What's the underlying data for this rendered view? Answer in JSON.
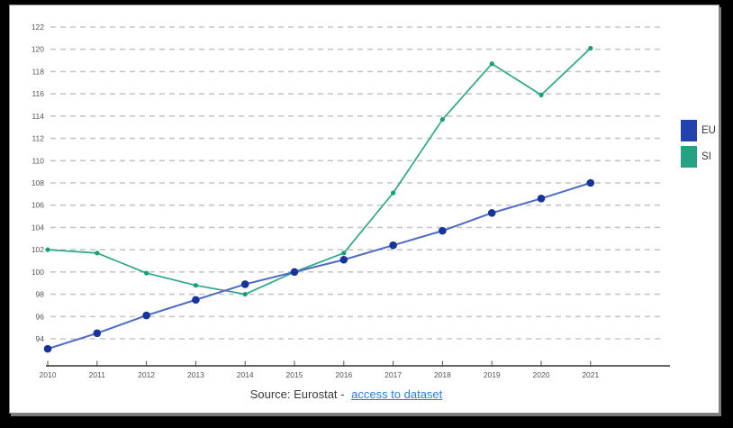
{
  "chart_data": {
    "type": "line",
    "title": "",
    "xlabel": "",
    "ylabel": "",
    "x": [
      2010,
      2011,
      2012,
      2013,
      2014,
      2015,
      2016,
      2017,
      2018,
      2019,
      2020,
      2021
    ],
    "series": [
      {
        "name": "EU",
        "values": [
          93.1,
          94.5,
          96.1,
          97.5,
          98.9,
          100,
          101.1,
          102.4,
          103.7,
          105.3,
          106.6,
          108
        ],
        "line_color": "#4d6ac5",
        "marker_color": "#17349c",
        "legend_color": "#2442ab",
        "marker_radius": 4.3,
        "line_width": 2
      },
      {
        "name": "SI",
        "values": [
          102,
          101.7,
          99.9,
          98.8,
          98,
          100,
          101.7,
          107.1,
          113.7,
          118.7,
          115.9,
          120.1
        ],
        "line_color": "#2aa887",
        "marker_color": "#12a27b",
        "legend_color": "#26a183",
        "marker_radius": 2.6,
        "line_width": 1.7
      }
    ],
    "y_ticks": [
      94,
      96,
      98,
      100,
      102,
      104,
      106,
      108,
      110,
      112,
      114,
      116,
      118,
      120,
      122
    ],
    "ylim": [
      91.6,
      122.5
    ],
    "grid": "horizontal-dashed",
    "legend_position": "right"
  },
  "footer": {
    "source_text": "Source: Eurostat -",
    "link_text": "access to dataset"
  },
  "colors": {
    "page_bg": "#000000",
    "panel_bg": "#ffffff",
    "grid": "#c6c6c6",
    "axis": "#4f4f4f",
    "tick_label": "#555555",
    "link": "#2b7bdb",
    "footer_text": "#3a3a3a"
  }
}
